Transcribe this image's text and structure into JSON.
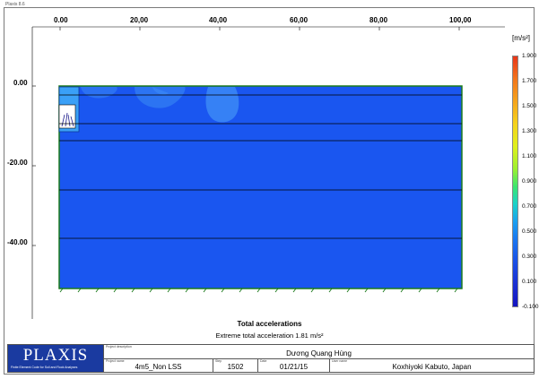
{
  "app": {
    "title": "Plaxis 8.6"
  },
  "plot": {
    "x_ticks": [
      "0.00",
      "20,00",
      "40,00",
      "60,00",
      "80,00",
      "100,00"
    ],
    "y_ticks": [
      "0.00",
      "-20.00",
      "-40.00"
    ],
    "colors": {
      "soil": "#1a56f0",
      "soil_light": "#3a86f5",
      "border": "#1a7a1a",
      "layer_line": "#000000"
    }
  },
  "legend": {
    "unit": "[m/s²]",
    "values": [
      "1.900",
      "1.700",
      "1.500",
      "1.300",
      "1.100",
      "0.900",
      "0.700",
      "0.500",
      "0.300",
      "0.100",
      "-0.100"
    ]
  },
  "caption": {
    "title": "Total accelerations",
    "subtitle": "Extreme total acceleration 1.81 m/s²"
  },
  "titleblock": {
    "logo": "PLAXIS",
    "logo_sub": "Finite Element Code for Soil and Rock Analyses",
    "project_description_label": "Project description",
    "project_description": "Dương Quang Hùng",
    "project_name_label": "Project name",
    "project_name": "4m5_Non LSS",
    "step_label": "Step",
    "step": "1502",
    "date_label": "Date",
    "date": "01/21/15",
    "user_label": "User name",
    "user": "Koxhiyoki Kabuto, Japan"
  }
}
